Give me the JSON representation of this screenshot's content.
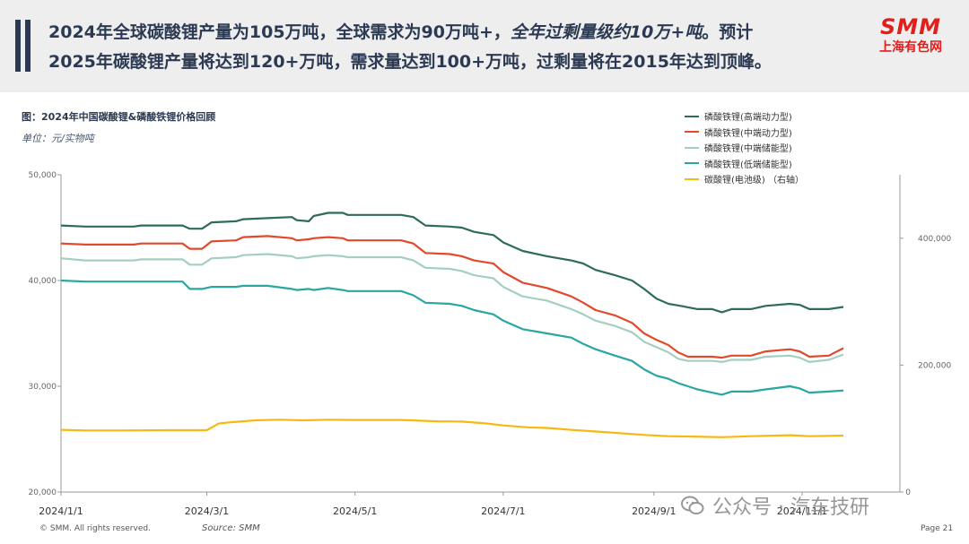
{
  "header": {
    "line1_a": "2024年全球碳酸锂产量为105万吨，全球需求为90万吨+，",
    "line1_em": "全年过剩量级约10万+吨",
    "line1_b": "。预计",
    "line2": "2025年碳酸锂产量将达到120+万吨，需求量达到100+万吨，过剩量将在2015年达到顶峰。"
  },
  "logo": {
    "text": "SMM",
    "subtext": "上海有色网",
    "color": "#e31d1a"
  },
  "footer": {
    "copyright": "© SMM. All rights reserved.",
    "source": "Source: SMM",
    "page": "Page 21",
    "watermark": "公众号 · 汽车技研"
  },
  "chart_data": {
    "type": "line",
    "title": "图：2024年中国碳酸锂&磷酸铁锂价格回顾",
    "unit": "单位：元/实物吨",
    "x_ticks": [
      "2024/1/1",
      "2024/3/1",
      "2024/5/1",
      "2024/7/1",
      "2024/9/1",
      "2024/11/1"
    ],
    "x_tick_days": [
      0,
      60,
      121,
      182,
      244,
      305
    ],
    "x_range_days": [
      0,
      322
    ],
    "ylim_left": [
      20000,
      50000
    ],
    "y_ticks_left": [
      "20,000",
      "30,000",
      "40,000",
      "50,000"
    ],
    "y_tick_values_left": [
      20000,
      30000,
      40000,
      50000
    ],
    "ylim_right": [
      0,
      500000
    ],
    "y_ticks_right": [
      "0",
      "200,000",
      "400,000"
    ],
    "y_tick_values_right": [
      0,
      200000,
      400000
    ],
    "legend_position": "top-right",
    "series": [
      {
        "name": "磷酸铁锂(高端动力型)",
        "axis": "left",
        "color": "#2f6b5a",
        "points": [
          [
            0,
            45200
          ],
          [
            10,
            45100
          ],
          [
            30,
            45100
          ],
          [
            33,
            45200
          ],
          [
            50,
            45200
          ],
          [
            53,
            44900
          ],
          [
            58,
            44900
          ],
          [
            62,
            45500
          ],
          [
            72,
            45600
          ],
          [
            75,
            45800
          ],
          [
            85,
            45900
          ],
          [
            95,
            46000
          ],
          [
            97,
            45700
          ],
          [
            102,
            45600
          ],
          [
            104,
            46100
          ],
          [
            110,
            46400
          ],
          [
            116,
            46400
          ],
          [
            118,
            46200
          ],
          [
            140,
            46200
          ],
          [
            145,
            46000
          ],
          [
            150,
            45200
          ],
          [
            160,
            45100
          ],
          [
            165,
            45000
          ],
          [
            170,
            44600
          ],
          [
            178,
            44300
          ],
          [
            182,
            43600
          ],
          [
            190,
            42800
          ],
          [
            200,
            42300
          ],
          [
            210,
            41900
          ],
          [
            215,
            41600
          ],
          [
            220,
            41000
          ],
          [
            228,
            40500
          ],
          [
            235,
            40000
          ],
          [
            240,
            39200
          ],
          [
            245,
            38300
          ],
          [
            250,
            37800
          ],
          [
            255,
            37600
          ],
          [
            262,
            37300
          ],
          [
            268,
            37300
          ],
          [
            272,
            37000
          ],
          [
            276,
            37300
          ],
          [
            284,
            37300
          ],
          [
            290,
            37600
          ],
          [
            300,
            37800
          ],
          [
            304,
            37700
          ],
          [
            308,
            37300
          ],
          [
            316,
            37300
          ],
          [
            322,
            37500
          ]
        ]
      },
      {
        "name": "磷酸铁锂(中端动力型)",
        "axis": "left",
        "color": "#e2492c",
        "points": [
          [
            0,
            43500
          ],
          [
            10,
            43400
          ],
          [
            30,
            43400
          ],
          [
            33,
            43500
          ],
          [
            50,
            43500
          ],
          [
            53,
            43000
          ],
          [
            58,
            43000
          ],
          [
            62,
            43700
          ],
          [
            72,
            43800
          ],
          [
            75,
            44100
          ],
          [
            85,
            44200
          ],
          [
            95,
            44000
          ],
          [
            97,
            43800
          ],
          [
            102,
            43900
          ],
          [
            104,
            44000
          ],
          [
            110,
            44100
          ],
          [
            116,
            44000
          ],
          [
            118,
            43800
          ],
          [
            140,
            43800
          ],
          [
            145,
            43500
          ],
          [
            150,
            42600
          ],
          [
            160,
            42500
          ],
          [
            165,
            42300
          ],
          [
            170,
            41900
          ],
          [
            178,
            41600
          ],
          [
            182,
            40800
          ],
          [
            190,
            39800
          ],
          [
            200,
            39300
          ],
          [
            210,
            38500
          ],
          [
            215,
            37900
          ],
          [
            220,
            37200
          ],
          [
            228,
            36700
          ],
          [
            235,
            36000
          ],
          [
            240,
            35000
          ],
          [
            245,
            34400
          ],
          [
            250,
            33900
          ],
          [
            254,
            33200
          ],
          [
            258,
            32800
          ],
          [
            262,
            32800
          ],
          [
            268,
            32800
          ],
          [
            272,
            32700
          ],
          [
            276,
            32900
          ],
          [
            284,
            32900
          ],
          [
            290,
            33300
          ],
          [
            300,
            33500
          ],
          [
            304,
            33300
          ],
          [
            308,
            32800
          ],
          [
            316,
            32900
          ],
          [
            322,
            33600
          ]
        ]
      },
      {
        "name": "磷酸铁锂(中端储能型)",
        "axis": "left",
        "color": "#a4cfc0",
        "points": [
          [
            0,
            42100
          ],
          [
            10,
            41900
          ],
          [
            30,
            41900
          ],
          [
            33,
            42000
          ],
          [
            50,
            42000
          ],
          [
            53,
            41500
          ],
          [
            58,
            41500
          ],
          [
            62,
            42100
          ],
          [
            72,
            42200
          ],
          [
            75,
            42400
          ],
          [
            85,
            42500
          ],
          [
            95,
            42300
          ],
          [
            97,
            42100
          ],
          [
            102,
            42200
          ],
          [
            104,
            42300
          ],
          [
            110,
            42400
          ],
          [
            116,
            42300
          ],
          [
            118,
            42200
          ],
          [
            140,
            42200
          ],
          [
            145,
            41900
          ],
          [
            150,
            41200
          ],
          [
            160,
            41100
          ],
          [
            165,
            40900
          ],
          [
            170,
            40500
          ],
          [
            178,
            40200
          ],
          [
            182,
            39400
          ],
          [
            190,
            38500
          ],
          [
            200,
            38100
          ],
          [
            210,
            37300
          ],
          [
            215,
            36800
          ],
          [
            220,
            36200
          ],
          [
            228,
            35700
          ],
          [
            235,
            35100
          ],
          [
            240,
            34200
          ],
          [
            245,
            33700
          ],
          [
            250,
            33200
          ],
          [
            254,
            32600
          ],
          [
            258,
            32400
          ],
          [
            262,
            32400
          ],
          [
            268,
            32400
          ],
          [
            272,
            32300
          ],
          [
            276,
            32500
          ],
          [
            284,
            32500
          ],
          [
            290,
            32800
          ],
          [
            300,
            32900
          ],
          [
            304,
            32700
          ],
          [
            308,
            32300
          ],
          [
            316,
            32500
          ],
          [
            322,
            33000
          ]
        ]
      },
      {
        "name": "磷酸铁锂(低端储能型)",
        "axis": "left",
        "color": "#2aa6a2",
        "points": [
          [
            0,
            40000
          ],
          [
            10,
            39900
          ],
          [
            30,
            39900
          ],
          [
            33,
            39900
          ],
          [
            50,
            39900
          ],
          [
            53,
            39200
          ],
          [
            58,
            39200
          ],
          [
            62,
            39400
          ],
          [
            72,
            39400
          ],
          [
            75,
            39500
          ],
          [
            85,
            39500
          ],
          [
            95,
            39200
          ],
          [
            97,
            39100
          ],
          [
            102,
            39200
          ],
          [
            104,
            39100
          ],
          [
            110,
            39300
          ],
          [
            116,
            39100
          ],
          [
            118,
            39000
          ],
          [
            140,
            39000
          ],
          [
            145,
            38600
          ],
          [
            150,
            37900
          ],
          [
            160,
            37800
          ],
          [
            165,
            37600
          ],
          [
            170,
            37200
          ],
          [
            178,
            36800
          ],
          [
            182,
            36200
          ],
          [
            190,
            35400
          ],
          [
            200,
            35000
          ],
          [
            210,
            34600
          ],
          [
            215,
            34000
          ],
          [
            220,
            33500
          ],
          [
            228,
            32900
          ],
          [
            235,
            32400
          ],
          [
            240,
            31600
          ],
          [
            245,
            31000
          ],
          [
            250,
            30700
          ],
          [
            254,
            30300
          ],
          [
            258,
            30000
          ],
          [
            262,
            29700
          ],
          [
            268,
            29400
          ],
          [
            272,
            29200
          ],
          [
            276,
            29500
          ],
          [
            284,
            29500
          ],
          [
            290,
            29700
          ],
          [
            300,
            30000
          ],
          [
            304,
            29800
          ],
          [
            308,
            29400
          ],
          [
            316,
            29500
          ],
          [
            322,
            29600
          ]
        ]
      },
      {
        "name": "碳酸锂(电池级)  （右轴）",
        "axis": "right",
        "color": "#f7b911",
        "points": [
          [
            0,
            98000
          ],
          [
            10,
            97000
          ],
          [
            25,
            97000
          ],
          [
            45,
            97500
          ],
          [
            60,
            97500
          ],
          [
            65,
            108000
          ],
          [
            70,
            110000
          ],
          [
            80,
            113000
          ],
          [
            90,
            114000
          ],
          [
            100,
            113000
          ],
          [
            110,
            114000
          ],
          [
            120,
            113500
          ],
          [
            140,
            113500
          ],
          [
            155,
            111500
          ],
          [
            165,
            111000
          ],
          [
            175,
            108000
          ],
          [
            182,
            105000
          ],
          [
            192,
            102000
          ],
          [
            200,
            101000
          ],
          [
            210,
            98000
          ],
          [
            225,
            94000
          ],
          [
            240,
            90000
          ],
          [
            250,
            88000
          ],
          [
            260,
            87500
          ],
          [
            272,
            86500
          ],
          [
            284,
            88000
          ],
          [
            300,
            89500
          ],
          [
            308,
            88000
          ],
          [
            316,
            88500
          ],
          [
            322,
            89000
          ]
        ]
      }
    ]
  }
}
